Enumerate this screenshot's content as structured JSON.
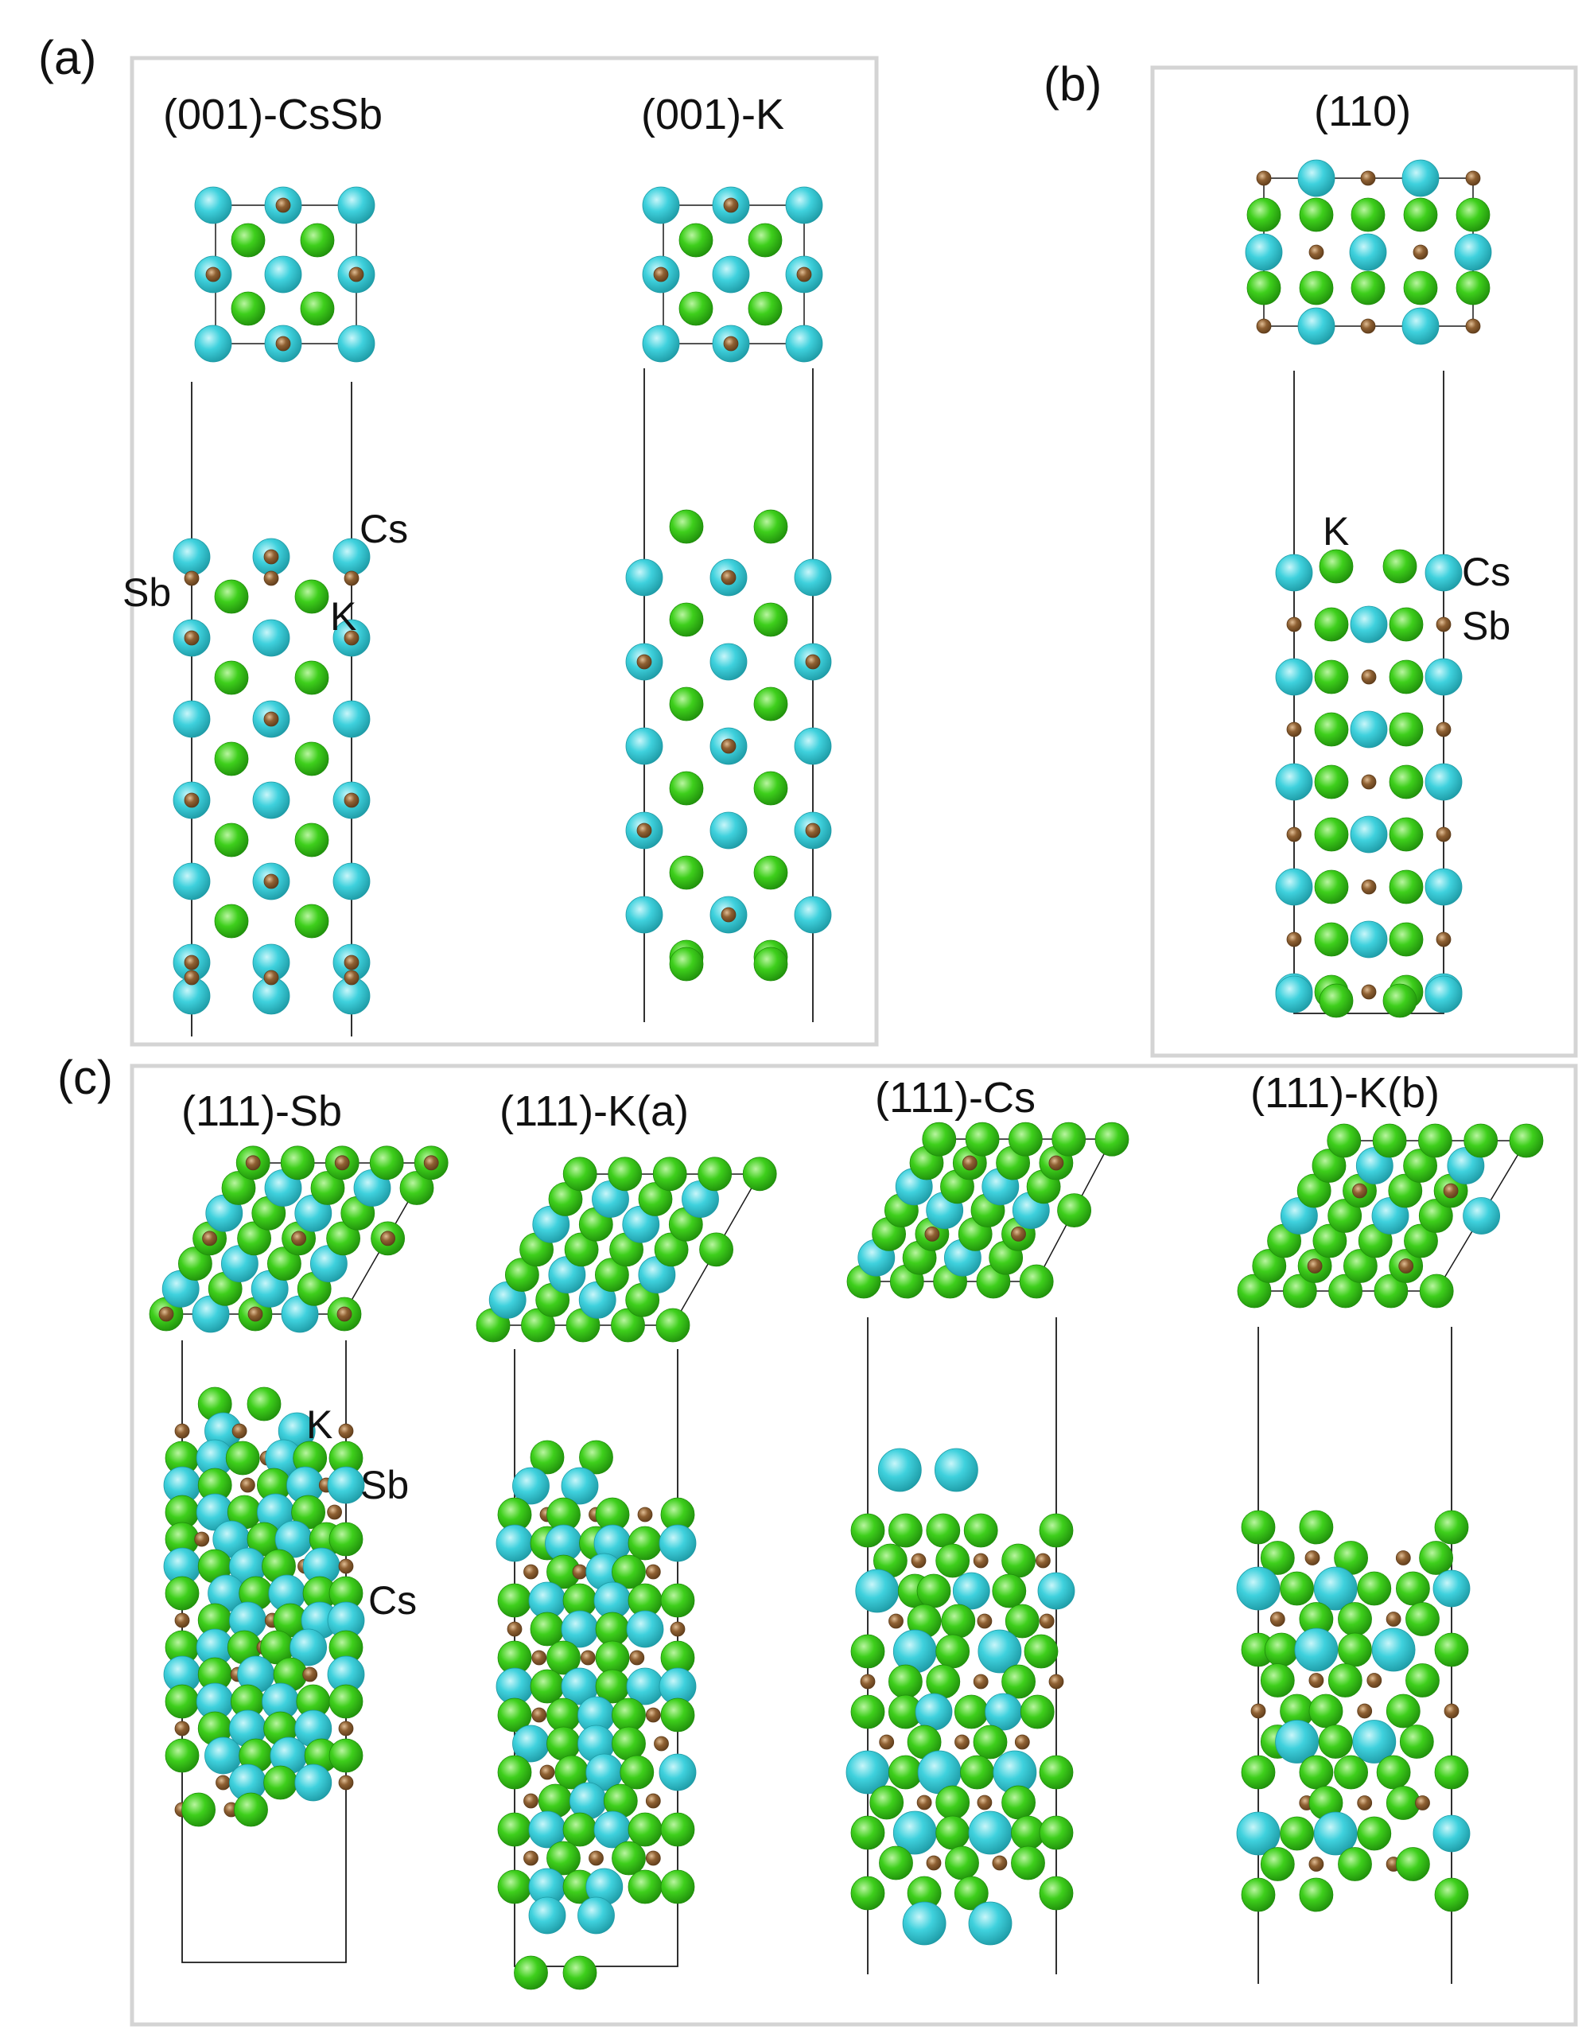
{
  "colors": {
    "cs": "#3fd1dd",
    "k": "#3ecf1c",
    "sb": "#8f6133",
    "frame": "#d4d4d4",
    "cell": "#1a1a1a"
  },
  "panels": {
    "a": {
      "label": "(a)",
      "slabs": [
        {
          "title": "(001)-CsSb",
          "atom_labels": [
            "Cs",
            "Sb",
            "K"
          ]
        },
        {
          "title": "(001)-K"
        }
      ]
    },
    "b": {
      "label": "(b)",
      "slabs": [
        {
          "title": "(110)",
          "atom_labels": [
            "K",
            "Cs",
            "Sb"
          ]
        }
      ]
    },
    "c": {
      "label": "(c)",
      "slabs": [
        {
          "title": "(111)-Sb",
          "atom_labels": [
            "K",
            "Sb",
            "Cs"
          ]
        },
        {
          "title": "(111)-K(a)"
        },
        {
          "title": "(111)-Cs"
        },
        {
          "title": "(111)-K(b)"
        }
      ]
    }
  }
}
